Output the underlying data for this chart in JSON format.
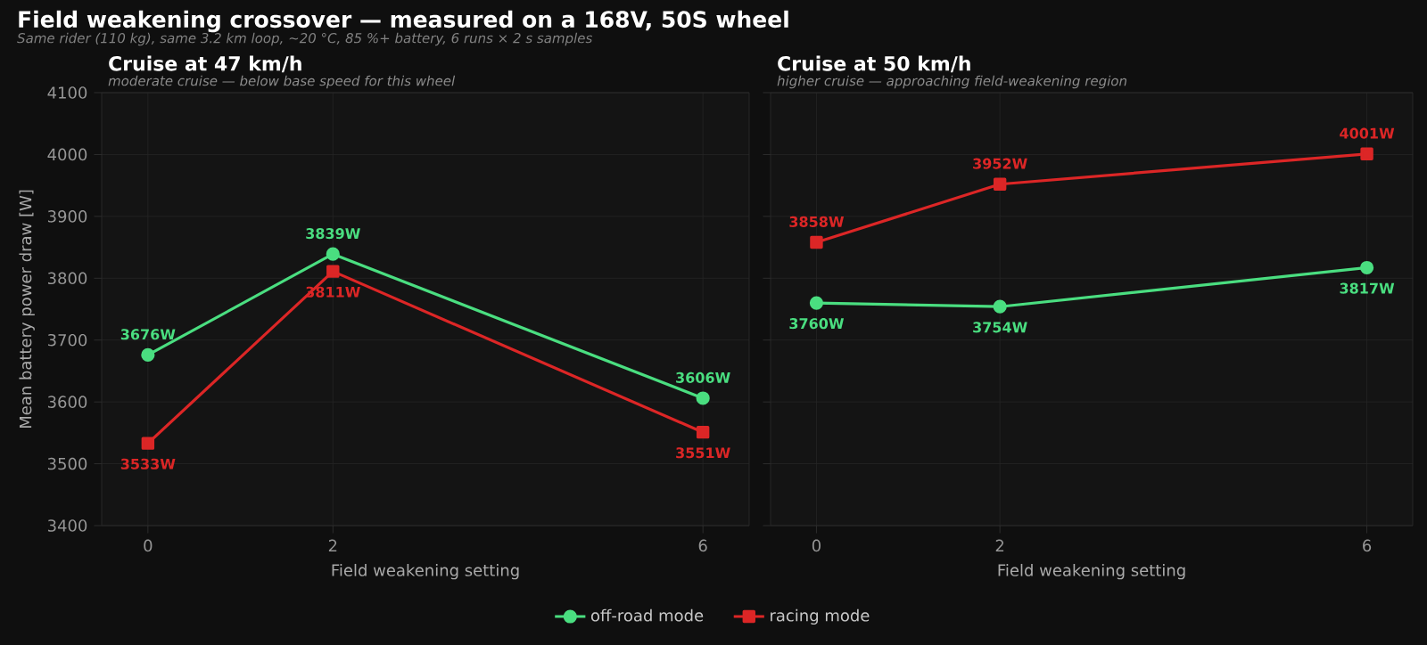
{
  "chart_data": [
    {
      "type": "line",
      "title": "Cruise at 47 km/h",
      "subtitle": "moderate cruise — below base speed for this wheel",
      "annotations": [
        "Field weakening crossover — measured on a 168V, 50S wheel",
        "Same rider (110 kg), same 3.2 km loop, ~20 °C, 85 %+ battery, 6 runs × 2 s samples"
      ],
      "xlabel": "Field weakening setting",
      "ylabel": "Mean battery power draw [W]",
      "x": [
        0,
        2,
        6
      ],
      "xlim": [
        -0.5,
        6.5
      ],
      "xticks": [
        0,
        2,
        6
      ],
      "ylim": [
        3400,
        4100
      ],
      "yticks": [
        3400,
        3500,
        3600,
        3700,
        3800,
        3900,
        4000,
        4100
      ],
      "grid": true,
      "legend": "bottom",
      "line_style": "solid",
      "series": [
        {
          "name": "off-road mode",
          "color": "#4ade80",
          "marker": "circle",
          "values": [
            3676,
            3839,
            3606
          ],
          "value_labels": [
            "3676W",
            "3839W",
            "3606W"
          ]
        },
        {
          "name": "racing mode",
          "color": "#dc2626",
          "marker": "square",
          "values": [
            3533,
            3811,
            3551
          ],
          "value_labels": [
            "3533W",
            "3811W",
            "3551W"
          ]
        }
      ]
    },
    {
      "type": "line",
      "title": "Cruise at 50 km/h",
      "subtitle": "higher cruise — approaching field-weakening region",
      "xlabel": "Field weakening setting",
      "x": [
        0,
        2,
        6
      ],
      "xlim": [
        -0.5,
        6.5
      ],
      "xticks": [
        0,
        2,
        6
      ],
      "ylim": [
        3400,
        4100
      ],
      "yticks": [
        3400,
        3500,
        3600,
        3700,
        3800,
        3900,
        4000,
        4100
      ],
      "grid": true,
      "tick_labels": "x",
      "line_style": "solid",
      "series": [
        {
          "color": "#4ade80",
          "marker": "circle",
          "values": [
            3760,
            3754,
            3817
          ],
          "value_labels": [
            "3760W",
            "3754W",
            "3817W"
          ]
        },
        {
          "color": "#dc2626",
          "marker": "square",
          "values": [
            3858,
            3952,
            4001
          ],
          "value_labels": [
            "3858W",
            "3952W",
            "4001W"
          ]
        }
      ]
    }
  ]
}
